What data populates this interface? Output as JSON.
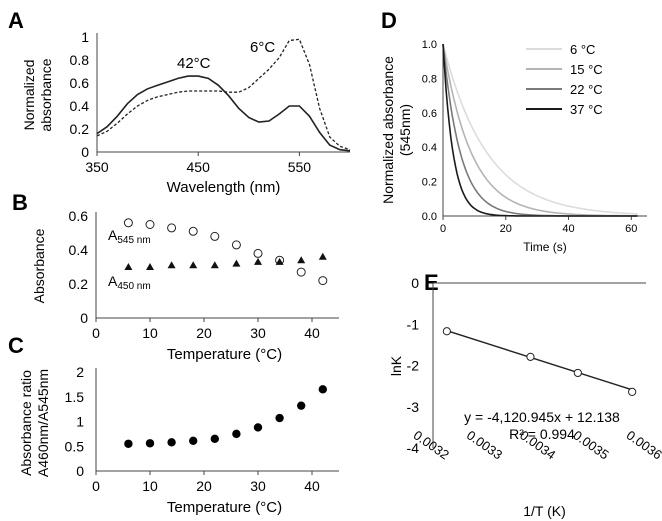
{
  "chart_data": [
    {
      "panel": "A",
      "type": "line",
      "xlabel": "Wavelength (nm)",
      "ylabel": [
        "Normalized",
        "absorbance"
      ],
      "xlim": [
        350,
        600
      ],
      "ylim": [
        0,
        1
      ],
      "xticks": [
        "350",
        "450",
        "550"
      ],
      "yticks": [
        "0",
        "0.2",
        "0.4",
        "0.6",
        "0.8",
        "1"
      ],
      "annotations": [
        "42°C",
        "6°C"
      ],
      "series": [
        {
          "name": "42°C",
          "style": "solid",
          "x": [
            350,
            360,
            370,
            380,
            390,
            400,
            410,
            420,
            430,
            440,
            450,
            460,
            470,
            480,
            490,
            500,
            510,
            520,
            530,
            540,
            550,
            560,
            570,
            580,
            590,
            600
          ],
          "y": [
            0.16,
            0.22,
            0.31,
            0.42,
            0.5,
            0.55,
            0.58,
            0.61,
            0.64,
            0.66,
            0.66,
            0.64,
            0.58,
            0.49,
            0.38,
            0.3,
            0.26,
            0.27,
            0.33,
            0.4,
            0.4,
            0.31,
            0.17,
            0.06,
            0.02,
            0.01
          ]
        },
        {
          "name": "6°C",
          "style": "dashed",
          "x": [
            350,
            360,
            370,
            380,
            390,
            400,
            410,
            420,
            430,
            440,
            450,
            460,
            470,
            480,
            490,
            500,
            510,
            520,
            530,
            540,
            550,
            560,
            570,
            580,
            590,
            600
          ],
          "y": [
            0.14,
            0.18,
            0.25,
            0.33,
            0.4,
            0.45,
            0.48,
            0.5,
            0.52,
            0.53,
            0.53,
            0.53,
            0.53,
            0.52,
            0.52,
            0.56,
            0.64,
            0.72,
            0.82,
            0.97,
            0.98,
            0.76,
            0.38,
            0.13,
            0.05,
            0.02
          ]
        }
      ]
    },
    {
      "panel": "B",
      "type": "scatter",
      "xlabel": "Temperature (°C)",
      "ylabel": "Absorbance",
      "xlim": [
        0,
        45
      ],
      "ylim": [
        0,
        0.6
      ],
      "xticks": [
        "0",
        "10",
        "20",
        "30",
        "40"
      ],
      "yticks": [
        "0",
        "0.2",
        "0.4",
        "0.6"
      ],
      "series": [
        {
          "name": "A545 nm",
          "label_main": "A",
          "label_sub": "545 nm",
          "marker": "open-circle",
          "x": [
            6,
            10,
            14,
            18,
            22,
            26,
            30,
            34,
            38,
            42
          ],
          "y": [
            0.56,
            0.55,
            0.53,
            0.51,
            0.48,
            0.43,
            0.38,
            0.34,
            0.27,
            0.22
          ]
        },
        {
          "name": "A450 nm",
          "label_main": "A",
          "label_sub": "450 nm",
          "marker": "filled-triangle",
          "x": [
            6,
            10,
            14,
            18,
            22,
            26,
            30,
            34,
            38,
            42
          ],
          "y": [
            0.3,
            0.3,
            0.31,
            0.31,
            0.31,
            0.32,
            0.33,
            0.33,
            0.34,
            0.36
          ]
        }
      ]
    },
    {
      "panel": "C",
      "type": "scatter",
      "xlabel": "Temperature (°C)",
      "ylabel": [
        "Absorbance ratio",
        "A460nm/A545nm"
      ],
      "xlim": [
        0,
        45
      ],
      "ylim": [
        0,
        2
      ],
      "xticks": [
        "0",
        "10",
        "20",
        "30",
        "40"
      ],
      "yticks": [
        "0",
        "0.5",
        "1",
        "1.5",
        "2"
      ],
      "series": [
        {
          "marker": "filled-circle",
          "x": [
            6,
            10,
            14,
            18,
            22,
            26,
            30,
            34,
            38,
            42
          ],
          "y": [
            0.55,
            0.56,
            0.58,
            0.61,
            0.65,
            0.75,
            0.88,
            1.07,
            1.32,
            1.65
          ]
        }
      ]
    },
    {
      "panel": "D",
      "type": "line",
      "xlabel": "Time (s)",
      "ylabel": [
        "Normalized absorbance",
        "(545nm)"
      ],
      "xlim": [
        0,
        65
      ],
      "ylim": [
        0,
        1
      ],
      "xticks": [
        "0",
        "20",
        "40",
        "60"
      ],
      "yticks": [
        "0.0",
        "0.2",
        "0.4",
        "0.6",
        "0.8",
        "1.0"
      ],
      "series": [
        {
          "name": "6 °C",
          "color": "#dcdcdc",
          "tau": 14
        },
        {
          "name": "15 °C",
          "color": "#b4b4b4",
          "tau": 9
        },
        {
          "name": "22 °C",
          "color": "#7a7a7a",
          "tau": 5.5
        },
        {
          "name": "37 °C",
          "color": "#1a1a1a",
          "tau": 3.2
        }
      ]
    },
    {
      "panel": "E",
      "type": "scatter",
      "xlabel": "1/T (K)",
      "ylabel": "lnK",
      "xlim": [
        0.0032,
        0.0036
      ],
      "ylim": [
        -4,
        0
      ],
      "xticks": [
        "0.0032",
        "0.0033",
        "0.0034",
        "0.0035",
        "0.0036"
      ],
      "yticks": [
        "0",
        "-1",
        "-2",
        "-3",
        "-4"
      ],
      "equation": "y = -4,120.945x + 12.138",
      "r2": "R² = 0.994",
      "trendline": {
        "slope": -4120.945,
        "intercept": 12.138
      },
      "series": [
        {
          "marker": "open-circle",
          "x": [
            0.003226,
            0.003383,
            0.003472,
            0.003574
          ],
          "y": [
            -1.17,
            -1.79,
            -2.18,
            -2.64
          ]
        }
      ]
    }
  ]
}
